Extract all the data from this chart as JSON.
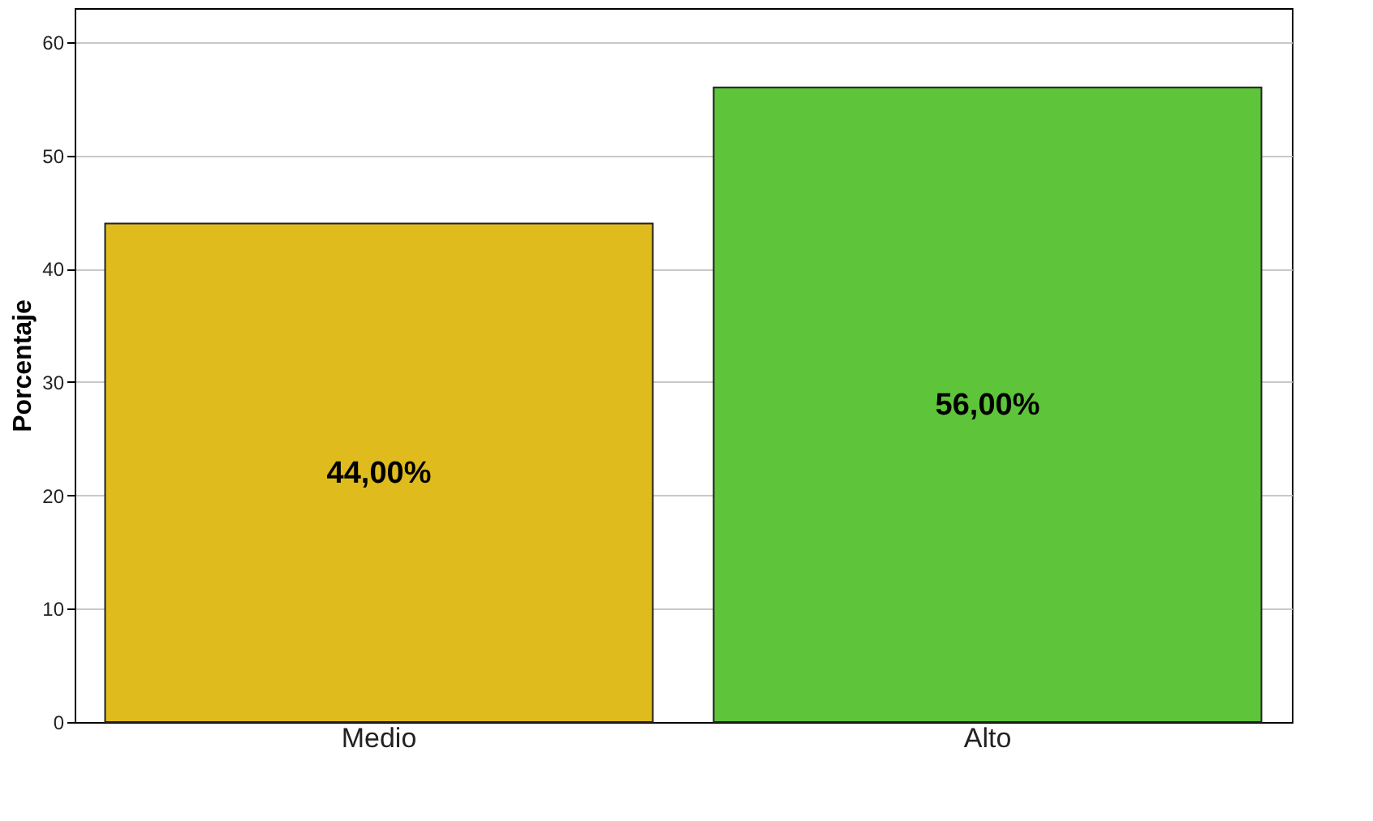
{
  "chart_data": {
    "type": "bar",
    "ylabel": "Porcentaje",
    "categories": [
      "Medio",
      "Alto"
    ],
    "values": [
      44,
      56
    ],
    "colors": [
      "#e0bb1e",
      "#5ec43a"
    ],
    "value_labels": [
      "44,00%",
      "56,00%"
    ],
    "ylim": [
      0,
      63
    ],
    "yticks": [
      0,
      10,
      20,
      30,
      40,
      50,
      60
    ],
    "grid": "y",
    "legend": false
  }
}
